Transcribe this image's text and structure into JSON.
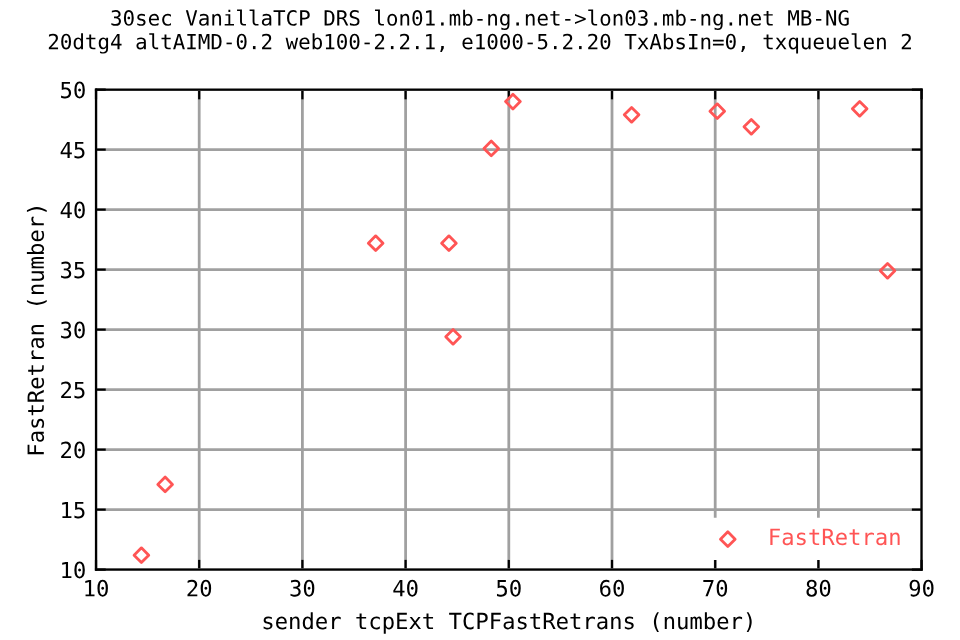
{
  "chart_data": {
    "type": "scatter",
    "title": "30sec VanillaTCP DRS lon01.mb-ng.net->lon03.mb-ng.net MB-NG\n20dtg4 altAIMD-0.2 web100-2.2.1, e1000-5.2.20 TxAbsIn=0, txqueuelen 2",
    "xlabel": "sender tcpExt TCPFastRetrans (number)",
    "ylabel": "FastRetran (number)",
    "series": [
      {
        "name": "FastRetran",
        "color": "#ff5555",
        "x": [
          14.4,
          16.7,
          37.1,
          44.2,
          44.6,
          48.3,
          50.4,
          61.9,
          70.2,
          73.5,
          84.0,
          86.7
        ],
        "values": [
          11.2,
          17.1,
          37.2,
          37.2,
          29.4,
          45.1,
          49.0,
          47.9,
          48.2,
          46.9,
          48.4,
          34.9
        ]
      }
    ],
    "marker": "diamond",
    "xlim": [
      10,
      90
    ],
    "xticks": [
      10,
      20,
      30,
      40,
      50,
      60,
      70,
      80,
      90
    ],
    "ylim": [
      10,
      50
    ],
    "yticks": [
      10,
      15,
      20,
      25,
      30,
      35,
      40,
      45,
      50
    ],
    "grid": true,
    "legend": "bottom right"
  }
}
